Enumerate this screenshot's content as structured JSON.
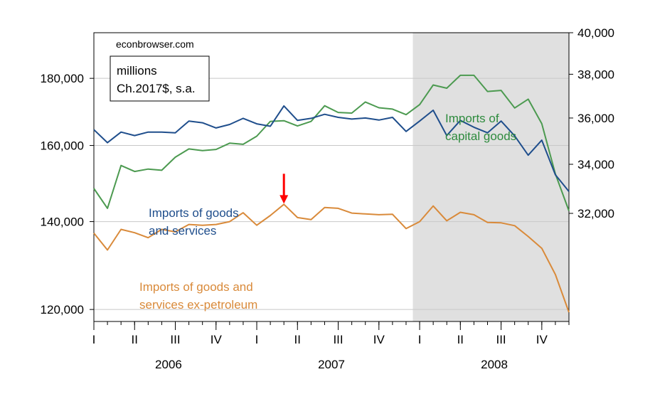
{
  "chart_data": {
    "type": "line",
    "source_label": "econbrowser.com",
    "units_box": [
      "millions",
      "Ch.2017$, s.a."
    ],
    "x": [
      "2006-01",
      "2006-02",
      "2006-03",
      "2006-04",
      "2006-05",
      "2006-06",
      "2006-07",
      "2006-08",
      "2006-09",
      "2006-10",
      "2006-11",
      "2006-12",
      "2007-01",
      "2007-02",
      "2007-03",
      "2007-04",
      "2007-05",
      "2007-06",
      "2007-07",
      "2007-08",
      "2007-09",
      "2007-10",
      "2007-11",
      "2007-12",
      "2008-01",
      "2008-02",
      "2008-03",
      "2008-04",
      "2008-05",
      "2008-06",
      "2008-07",
      "2008-08",
      "2008-09",
      "2008-10",
      "2008-11",
      "2008-12"
    ],
    "quarter_ticks": [
      "I",
      "II",
      "III",
      "IV",
      "I",
      "II",
      "III",
      "IV",
      "I",
      "II",
      "III",
      "IV"
    ],
    "years": [
      "2006",
      "2007",
      "2008"
    ],
    "left_axis": {
      "scale": "log",
      "ylim": [
        117500,
        195000
      ],
      "ticks": [
        120000,
        140000,
        160000,
        180000
      ],
      "tick_labels": [
        "120,000",
        "140,000",
        "160,000",
        "180,000"
      ]
    },
    "right_axis": {
      "scale": "log",
      "ylim": [
        28000,
        40000
      ],
      "ticks": [
        32000,
        34000,
        36000,
        38000,
        40000
      ],
      "tick_labels": [
        "32,000",
        "34,000",
        "36,000",
        "38,000",
        "40,000"
      ]
    },
    "shaded_region": {
      "from": "2008-01",
      "to": "2008-12",
      "color": "#e0e0e0"
    },
    "arrow": {
      "x": "2007-03",
      "color": "#ff0000"
    },
    "series": [
      {
        "name": "Imports of capital goods",
        "label_lines": [
          "Imports of",
          "capital goods"
        ],
        "axis": "right",
        "color": "#4c9a50",
        "values": [
          33000,
          32200,
          33950,
          33700,
          33800,
          33750,
          34300,
          34650,
          34580,
          34630,
          34900,
          34850,
          35200,
          35850,
          35880,
          35650,
          35850,
          36550,
          36250,
          36220,
          36720,
          36460,
          36400,
          36150,
          36600,
          37500,
          37350,
          37950,
          37950,
          37200,
          37250,
          36450,
          36850,
          35750,
          33600,
          32100
        ]
      },
      {
        "name": "Imports of goods and services",
        "label_lines": [
          "Imports of goods",
          "and services"
        ],
        "axis": "left",
        "color": "#1f4e8c",
        "values": [
          164500,
          160800,
          163800,
          162800,
          163800,
          163800,
          163600,
          167000,
          166500,
          165000,
          166000,
          167800,
          166200,
          165500,
          171500,
          167200,
          167800,
          169000,
          168100,
          167600,
          167900,
          167300,
          168100,
          164000,
          167000,
          170200,
          162800,
          167200,
          165200,
          163600,
          167000,
          162700,
          157300,
          161500,
          152000,
          147600
        ]
      },
      {
        "name": "Imports of goods and services ex-petroleum",
        "label_lines": [
          "Imports of goods and",
          "services ex-petroleum"
        ],
        "axis": "left",
        "color": "#d98a3a",
        "values": [
          137200,
          133200,
          138100,
          137300,
          136100,
          138100,
          137500,
          139300,
          139100,
          139300,
          140000,
          142200,
          139100,
          141500,
          144300,
          141000,
          140500,
          143500,
          143300,
          142100,
          141900,
          141700,
          141800,
          138300,
          140000,
          143900,
          140200,
          142300,
          141700,
          139800,
          139700,
          139000,
          136400,
          133600,
          127600,
          119400
        ]
      }
    ]
  }
}
